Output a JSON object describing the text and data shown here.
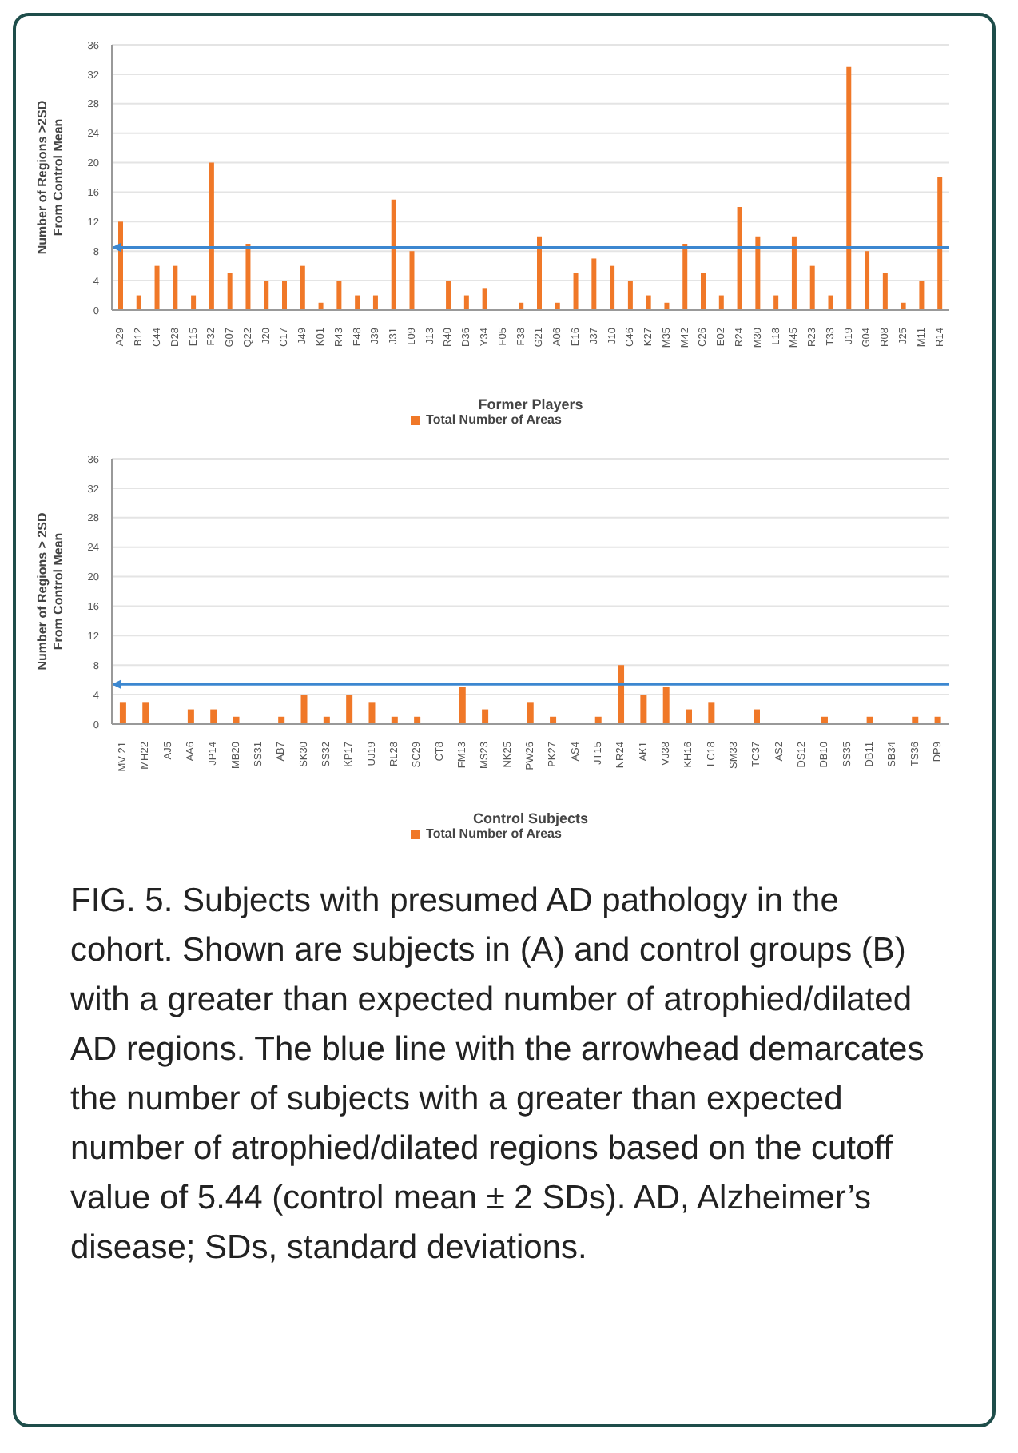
{
  "chart_data": [
    {
      "type": "bar",
      "xlabel": "Former Players",
      "ylabel": "Number of Regions >2SD From Control Mean",
      "categories": [
        "A29",
        "B12",
        "C44",
        "D28",
        "E15",
        "F32",
        "G07",
        "Q22",
        "J20",
        "C17",
        "J49",
        "K01",
        "R43",
        "E48",
        "J39",
        "J31",
        "L09",
        "J13",
        "R40",
        "D36",
        "Y34",
        "F05",
        "F38",
        "G21",
        "A06",
        "E16",
        "J37",
        "J10",
        "C46",
        "K27",
        "M35",
        "M42",
        "C26",
        "E02",
        "R24",
        "M30",
        "L18",
        "M45",
        "R23",
        "T33",
        "J19",
        "G04",
        "R08",
        "J25",
        "M11",
        "R14"
      ],
      "series": [
        {
          "name": "Total Number of Areas",
          "color": "#f07828",
          "values": [
            12,
            2,
            6,
            6,
            2,
            20,
            5,
            9,
            4,
            4,
            6,
            1,
            4,
            2,
            2,
            15,
            8,
            0,
            4,
            2,
            3,
            0,
            1,
            10,
            1,
            5,
            7,
            6,
            4,
            2,
            1,
            9,
            5,
            2,
            14,
            10,
            2,
            10,
            6,
            2,
            33,
            8,
            5,
            1,
            4,
            18
          ]
        }
      ],
      "ylim": [
        0,
        36
      ],
      "yticks": [
        0,
        4,
        8,
        12,
        16,
        20,
        24,
        28,
        32,
        36
      ],
      "grid": "y",
      "legend": "bottom",
      "ref_lines": [
        {
          "axis": "y",
          "value": 8.5,
          "color": "#3c87d0"
        }
      ]
    },
    {
      "type": "bar",
      "xlabel": "Control Subjects",
      "ylabel": "Number of Regions > 2SD From Control Mean",
      "categories": [
        "MV 21",
        "MH22",
        "AJ5",
        "AA6",
        "JP14",
        "MB20",
        "SS31",
        "AB7",
        "SK30",
        "SS32",
        "KP17",
        "UJ19",
        "RL28",
        "SC29",
        "CT8",
        "FM13",
        "MS23",
        "NK25",
        "PW26",
        "PK27",
        "AS4",
        "JT15",
        "NR24",
        "AK1",
        "VJ38",
        "KH16",
        "LC18",
        "SM33",
        "TC37",
        "AS2",
        "DS12",
        "DB10",
        "SS35",
        "DB11",
        "SB34",
        "TS36",
        "DP9"
      ],
      "series": [
        {
          "name": "Total Number of Areas",
          "color": "#f07828",
          "values": [
            3,
            3,
            0,
            2,
            2,
            1,
            0,
            1,
            4,
            1,
            4,
            3,
            1,
            1,
            0,
            5,
            2,
            0,
            3,
            1,
            0,
            1,
            8,
            4,
            5,
            2,
            3,
            0,
            2,
            0,
            0,
            1,
            0,
            1,
            0,
            1,
            1
          ]
        }
      ],
      "ylim": [
        0,
        36
      ],
      "yticks": [
        0,
        4,
        8,
        12,
        16,
        20,
        24,
        28,
        32,
        36
      ],
      "grid": "y",
      "legend": "bottom",
      "ref_lines": [
        {
          "axis": "y",
          "value": 5.4,
          "color": "#3c87d0"
        }
      ],
      "annotations": [
        "FIG. 5. Subjects with presumed AD pathology in the cohort. Shown are subjects in (A) and control groups (B) with a greater than expected number of atrophied/dilated AD regions. The blue line with the arrowhead demarcates the number of subjects with a greater than expected number of atrophied/dilated regions based on the cutoff value of 5.44 (control mean ± 2 SDs). AD, Alzheimer’s disease; SDs, standard deviations."
      ]
    }
  ]
}
